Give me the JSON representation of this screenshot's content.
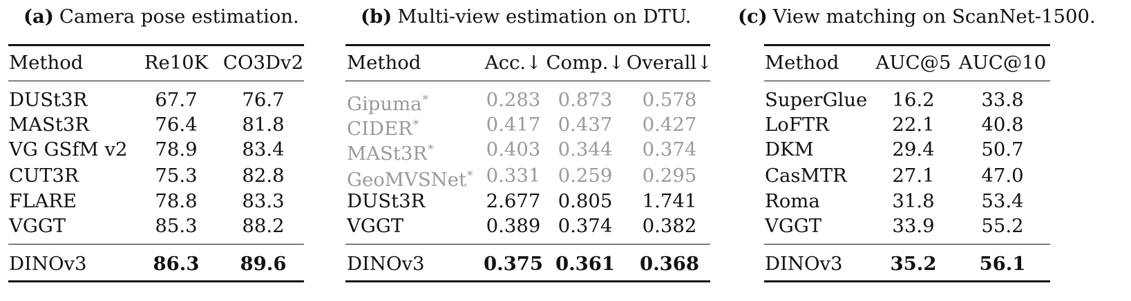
{
  "panels": [
    {
      "tag": "(a)",
      "title": "Camera pose estimation.",
      "headers": [
        "Method",
        "Re10K",
        "CO3Dv2"
      ],
      "rows": [
        {
          "method": "DUSt3R",
          "values": [
            "67.7",
            "76.7"
          ]
        },
        {
          "method": "MASt3R",
          "values": [
            "76.4",
            "81.8"
          ]
        },
        {
          "method": "VG GSfM v2",
          "values": [
            "78.9",
            "83.4"
          ]
        },
        {
          "method": "CUT3R",
          "values": [
            "75.3",
            "82.8"
          ]
        },
        {
          "method": "FLARE",
          "values": [
            "78.8",
            "83.3"
          ]
        },
        {
          "method": "VGGT",
          "values": [
            "85.3",
            "88.2"
          ]
        }
      ],
      "final": {
        "method": "DINOv3",
        "values": [
          "86.3",
          "89.6"
        ]
      }
    },
    {
      "tag": "(b)",
      "title": "Multi-view estimation on DTU.",
      "headers": [
        "Method",
        "Acc.↓",
        "Comp.↓",
        "Overall↓"
      ],
      "rows": [
        {
          "method": "Gipuma",
          "star": "*",
          "values": [
            "0.283",
            "0.873",
            "0.578"
          ],
          "muted": true
        },
        {
          "method": "CIDER",
          "star": "*",
          "values": [
            "0.417",
            "0.437",
            "0.427"
          ],
          "muted": true
        },
        {
          "method": "MASt3R",
          "star": "*",
          "values": [
            "0.403",
            "0.344",
            "0.374"
          ],
          "muted": true
        },
        {
          "method": "GeoMVSNet",
          "star": "*",
          "values": [
            "0.331",
            "0.259",
            "0.295"
          ],
          "muted": true
        },
        {
          "method": "DUSt3R",
          "values": [
            "2.677",
            "0.805",
            "1.741"
          ]
        },
        {
          "method": "VGGT",
          "values": [
            "0.389",
            "0.374",
            "0.382"
          ]
        }
      ],
      "final": {
        "method": "DINOv3",
        "values": [
          "0.375",
          "0.361",
          "0.368"
        ]
      }
    },
    {
      "tag": "(c)",
      "title": "View matching on ScanNet-1500.",
      "headers": [
        "Method",
        "AUC@5",
        "AUC@10"
      ],
      "rows": [
        {
          "method": "SuperGlue",
          "values": [
            "16.2",
            "33.8"
          ]
        },
        {
          "method": "LoFTR",
          "values": [
            "22.1",
            "40.8"
          ]
        },
        {
          "method": "DKM",
          "values": [
            "29.4",
            "50.7"
          ]
        },
        {
          "method": "CasMTR",
          "values": [
            "27.1",
            "47.0"
          ]
        },
        {
          "method": "Roma",
          "values": [
            "31.8",
            "53.4"
          ]
        },
        {
          "method": "VGGT",
          "values": [
            "33.9",
            "55.2"
          ]
        }
      ],
      "final": {
        "method": "DINOv3",
        "values": [
          "35.2",
          "56.1"
        ]
      }
    }
  ]
}
